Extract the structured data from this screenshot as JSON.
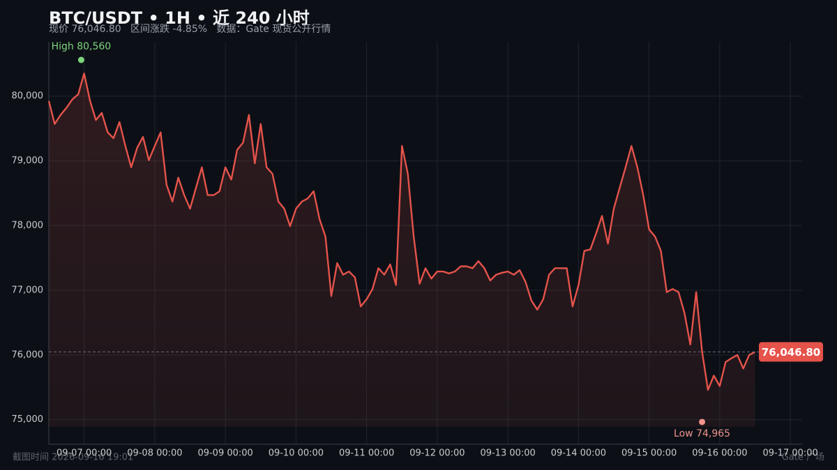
{
  "chart_data": {
    "type": "line",
    "title": "BTC/USDT • 1H • 近 240 小时",
    "subtitle": "现价 76,046.80   区间涨跌 -4.85%   数据：Gate 现货公开行情",
    "footer_left": "截图时间 2026-09-16 19:01",
    "footer_right": "Gate 广场",
    "color": "#e5534b",
    "grid": true,
    "x": [
      "09-06 12:00",
      "09-06 14:00",
      "09-06 16:00",
      "09-06 18:00",
      "09-06 20:00",
      "09-06 22:00",
      "09-07 00:00",
      "09-07 02:00",
      "09-07 04:00",
      "09-07 06:00",
      "09-07 08:00",
      "09-07 10:00",
      "09-07 12:00",
      "09-07 14:00",
      "09-07 16:00",
      "09-07 18:00",
      "09-07 20:00",
      "09-07 22:00",
      "09-08 00:00",
      "09-08 02:00",
      "09-08 04:00",
      "09-08 06:00",
      "09-08 08:00",
      "09-08 10:00",
      "09-08 12:00",
      "09-08 14:00",
      "09-08 16:00",
      "09-08 18:00",
      "09-08 20:00",
      "09-08 22:00",
      "09-09 00:00",
      "09-09 02:00",
      "09-09 04:00",
      "09-09 06:00",
      "09-09 08:00",
      "09-09 10:00",
      "09-09 12:00",
      "09-09 14:00",
      "09-09 16:00",
      "09-09 18:00",
      "09-09 20:00",
      "09-09 22:00",
      "09-10 00:00",
      "09-10 02:00",
      "09-10 04:00",
      "09-10 06:00",
      "09-10 08:00",
      "09-10 10:00",
      "09-10 12:00",
      "09-10 14:00",
      "09-10 16:00",
      "09-10 18:00",
      "09-10 20:00",
      "09-10 22:00",
      "09-11 00:00",
      "09-11 02:00",
      "09-11 04:00",
      "09-11 06:00",
      "09-11 08:00",
      "09-11 10:00",
      "09-11 12:00",
      "09-11 14:00",
      "09-11 16:00",
      "09-11 18:00",
      "09-11 20:00",
      "09-11 22:00",
      "09-12 00:00",
      "09-12 02:00",
      "09-12 04:00",
      "09-12 06:00",
      "09-12 08:00",
      "09-12 10:00",
      "09-12 12:00",
      "09-12 14:00",
      "09-12 16:00",
      "09-12 18:00",
      "09-12 20:00",
      "09-12 22:00",
      "09-13 00:00",
      "09-13 02:00",
      "09-13 04:00",
      "09-13 06:00",
      "09-13 08:00",
      "09-13 10:00",
      "09-13 12:00",
      "09-13 14:00",
      "09-13 16:00",
      "09-13 18:00",
      "09-13 20:00",
      "09-13 22:00",
      "09-14 00:00",
      "09-14 02:00",
      "09-14 04:00",
      "09-14 06:00",
      "09-14 08:00",
      "09-14 10:00",
      "09-14 12:00",
      "09-14 14:00",
      "09-14 16:00",
      "09-14 18:00",
      "09-14 20:00",
      "09-14 22:00",
      "09-15 00:00",
      "09-15 02:00",
      "09-15 04:00",
      "09-15 06:00",
      "09-15 08:00",
      "09-15 10:00",
      "09-15 12:00",
      "09-15 14:00",
      "09-15 16:00",
      "09-15 18:00",
      "09-15 20:00",
      "09-15 22:00",
      "09-16 00:00",
      "09-16 02:00",
      "09-16 04:00",
      "09-16 06:00",
      "09-16 08:00",
      "09-16 10:00",
      "09-16 12:00"
    ],
    "values": [
      79925,
      79570,
      79710,
      79820,
      79950,
      80030,
      80350,
      79925,
      79630,
      79740,
      79440,
      79350,
      79600,
      79230,
      78900,
      79200,
      79370,
      79010,
      79230,
      79440,
      78630,
      78370,
      78740,
      78470,
      78260,
      78580,
      78900,
      78470,
      78470,
      78530,
      78900,
      78710,
      79170,
      79280,
      79710,
      78960,
      79570,
      78900,
      78800,
      78370,
      78260,
      77990,
      78260,
      78370,
      78420,
      78530,
      78100,
      77830,
      76910,
      77420,
      77240,
      77290,
      77200,
      76750,
      76860,
      77020,
      77340,
      77240,
      77400,
      77080,
      79230,
      78800,
      77830,
      77100,
      77340,
      77180,
      77290,
      77290,
      77260,
      77290,
      77370,
      77370,
      77340,
      77450,
      77340,
      77150,
      77240,
      77270,
      77290,
      77240,
      77310,
      77130,
      76840,
      76700,
      76860,
      77240,
      77340,
      77340,
      77340,
      76750,
      77080,
      77610,
      77630,
      77880,
      78150,
      77720,
      78260,
      78580,
      78900,
      79230,
      78900,
      78470,
      77940,
      77830,
      77610,
      76970,
      77020,
      76970,
      76650,
      76160,
      76970,
      76050,
      75460,
      75680,
      75520,
      75890,
      75950,
      76000,
      75790,
      76000,
      76046.8
    ],
    "last_label": "76,046.80",
    "annotations": [
      {
        "text": "High 80,560",
        "value": 80560,
        "x": "09-06 23:00",
        "color": "#7ed47e"
      },
      {
        "text": "Low 74,965",
        "value": 74965,
        "x": "09-15 18:00",
        "color": "#f0928c"
      }
    ],
    "xlim": [
      "09-06 12:00",
      "09-17 04:00"
    ],
    "xticks": [
      "09-07 00:00",
      "09-08 00:00",
      "09-09 00:00",
      "09-10 00:00",
      "09-11 00:00",
      "09-12 00:00",
      "09-13 00:00",
      "09-14 00:00",
      "09-15 00:00",
      "09-16 00:00",
      "09-17 00:00"
    ],
    "ylim": [
      74620,
      80840
    ],
    "yticks": [
      {
        "value": 75000,
        "label": "75,000"
      },
      {
        "value": 76000,
        "label": "76,000"
      },
      {
        "value": 77000,
        "label": "77,000"
      },
      {
        "value": 78000,
        "label": "78,000"
      },
      {
        "value": 79000,
        "label": "79,000"
      },
      {
        "value": 80000,
        "label": "80,000"
      }
    ]
  }
}
